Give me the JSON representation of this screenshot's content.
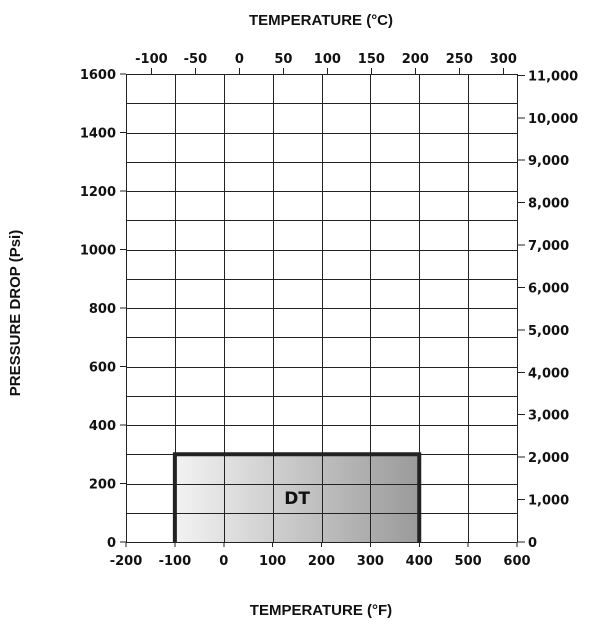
{
  "chart_data": {
    "type": "area",
    "title_top": "TEMPERATURE (°C)",
    "title_bottom": "TEMPERATURE (°F)",
    "ylabel": "PRESSURE DROP (Psi)",
    "x_f": {
      "range": [
        -200,
        600
      ],
      "ticks": [
        -200,
        -100,
        0,
        100,
        200,
        300,
        400,
        500,
        600
      ],
      "tick_labels": [
        "-200",
        "-100",
        "0",
        "100",
        "200",
        "300",
        "400",
        "500",
        "600"
      ]
    },
    "x_c": {
      "ticks": [
        -100,
        -50,
        0,
        50,
        100,
        150,
        200,
        250,
        300
      ],
      "tick_labels": [
        "-100",
        "-50",
        "0",
        "50",
        "100",
        "150",
        "200",
        "250",
        "300"
      ]
    },
    "y_psi": {
      "range": [
        0,
        1600
      ],
      "ticks": [
        0,
        200,
        400,
        600,
        800,
        1000,
        1200,
        1400,
        1600
      ],
      "tick_labels": [
        "0",
        "200",
        "400",
        "600",
        "800",
        "1000",
        "1200",
        "1400",
        "1600"
      ]
    },
    "y_kpa": {
      "ticks": [
        0,
        1000,
        2000,
        3000,
        4000,
        5000,
        6000,
        7000,
        8000,
        9000,
        10000,
        11000
      ],
      "tick_labels": [
        "0",
        "1,000",
        "2,000",
        "3,000",
        "4,000",
        "5,000",
        "6,000",
        "7,000",
        "8,000",
        "9,000",
        "10,000",
        "11,000"
      ]
    },
    "grid": true,
    "region": {
      "label": "DT",
      "x_f": [
        -100,
        400
      ],
      "y_psi": [
        0,
        300
      ],
      "colors": {
        "fill_start": "#f3f3f3",
        "fill_end": "#9a9a9a",
        "border": "#222222"
      }
    }
  }
}
